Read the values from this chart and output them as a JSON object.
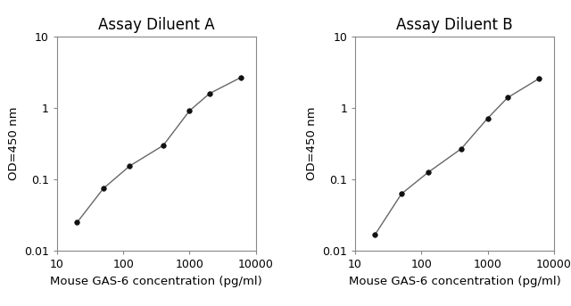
{
  "panel_A": {
    "title": "Assay Diluent A",
    "x": [
      20,
      50,
      125,
      400,
      1000,
      2000,
      6000
    ],
    "y": [
      0.025,
      0.075,
      0.155,
      0.3,
      0.92,
      1.6,
      2.7
    ],
    "xlabel": "Mouse GAS-6 concentration (pg/ml)",
    "ylabel": "OD=450 nm",
    "xlim": [
      10,
      10000
    ],
    "ylim": [
      0.01,
      10
    ]
  },
  "panel_B": {
    "title": "Assay Diluent B",
    "x": [
      20,
      50,
      125,
      400,
      1000,
      2000,
      6000
    ],
    "y": [
      0.017,
      0.063,
      0.125,
      0.27,
      0.72,
      1.4,
      2.6
    ],
    "xlabel": "Mouse GAS-6 concentration (pg/ml)",
    "ylabel": "OD=450 nm",
    "xlim": [
      10,
      10000
    ],
    "ylim": [
      0.01,
      10
    ]
  },
  "line_color": "#666666",
  "marker_color": "#111111",
  "marker": "o",
  "marker_size": 4,
  "line_width": 1.0,
  "title_fontsize": 12,
  "label_fontsize": 9.5,
  "tick_fontsize": 9,
  "background_color": "#ffffff",
  "spine_color": "#888888",
  "spine_linewidth": 0.8
}
